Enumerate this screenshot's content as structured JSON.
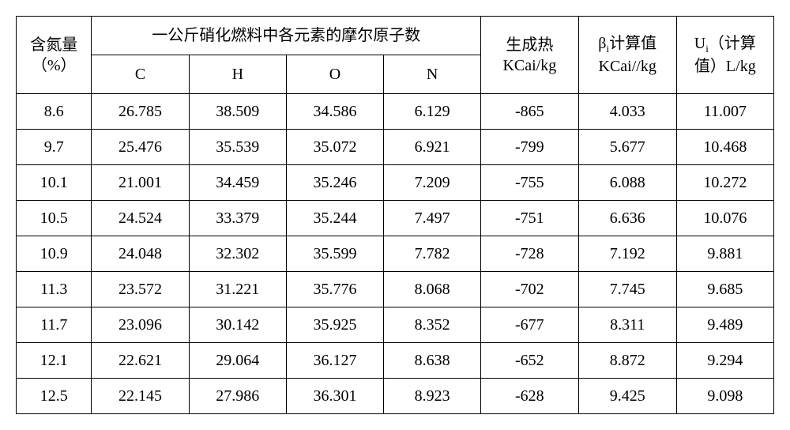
{
  "table": {
    "columns": {
      "nitrogen_label_line1": "含氮量",
      "nitrogen_label_line2": "（%）",
      "elements_group_label": "一公斤硝化燃料中各元素的摩尔原子数",
      "element_C": "C",
      "element_H": "H",
      "element_O": "O",
      "element_N": "N",
      "heat_label_line1": "生成热",
      "heat_label_line2": "KCai/kg",
      "beta_label_prefix": "β",
      "beta_label_sub": "i",
      "beta_label_suffix": "计算值",
      "beta_label_line2": "KCai//kg",
      "u_label_prefix": "U",
      "u_label_sub": "i",
      "u_label_suffix": "（计算",
      "u_label_line2": "值）L/kg"
    },
    "rows": [
      {
        "n": "8.6",
        "C": "26.785",
        "H": "38.509",
        "O": "34.586",
        "Ncol": "6.129",
        "heat": "-865",
        "beta": "4.033",
        "u": "11.007"
      },
      {
        "n": "9.7",
        "C": "25.476",
        "H": "35.539",
        "O": "35.072",
        "Ncol": "6.921",
        "heat": "-799",
        "beta": "5.677",
        "u": "10.468"
      },
      {
        "n": "10.1",
        "C": "21.001",
        "H": "34.459",
        "O": "35.246",
        "Ncol": "7.209",
        "heat": "-755",
        "beta": "6.088",
        "u": "10.272"
      },
      {
        "n": "10.5",
        "C": "24.524",
        "H": "33.379",
        "O": "35.244",
        "Ncol": "7.497",
        "heat": "-751",
        "beta": "6.636",
        "u": "10.076"
      },
      {
        "n": "10.9",
        "C": "24.048",
        "H": "32.302",
        "O": "35.599",
        "Ncol": "7.782",
        "heat": "-728",
        "beta": "7.192",
        "u": "9.881"
      },
      {
        "n": "11.3",
        "C": "23.572",
        "H": "31.221",
        "O": "35.776",
        "Ncol": "8.068",
        "heat": "-702",
        "beta": "7.745",
        "u": "9.685"
      },
      {
        "n": "11.7",
        "C": "23.096",
        "H": "30.142",
        "O": "35.925",
        "Ncol": "8.352",
        "heat": "-677",
        "beta": "8.311",
        "u": "9.489"
      },
      {
        "n": "12.1",
        "C": "22.621",
        "H": "29.064",
        "O": "36.127",
        "Ncol": "8.638",
        "heat": "-652",
        "beta": "8.872",
        "u": "9.294"
      },
      {
        "n": "12.5",
        "C": "22.145",
        "H": "27.986",
        "O": "36.301",
        "Ncol": "8.923",
        "heat": "-628",
        "beta": "9.425",
        "u": "9.098"
      }
    ]
  }
}
